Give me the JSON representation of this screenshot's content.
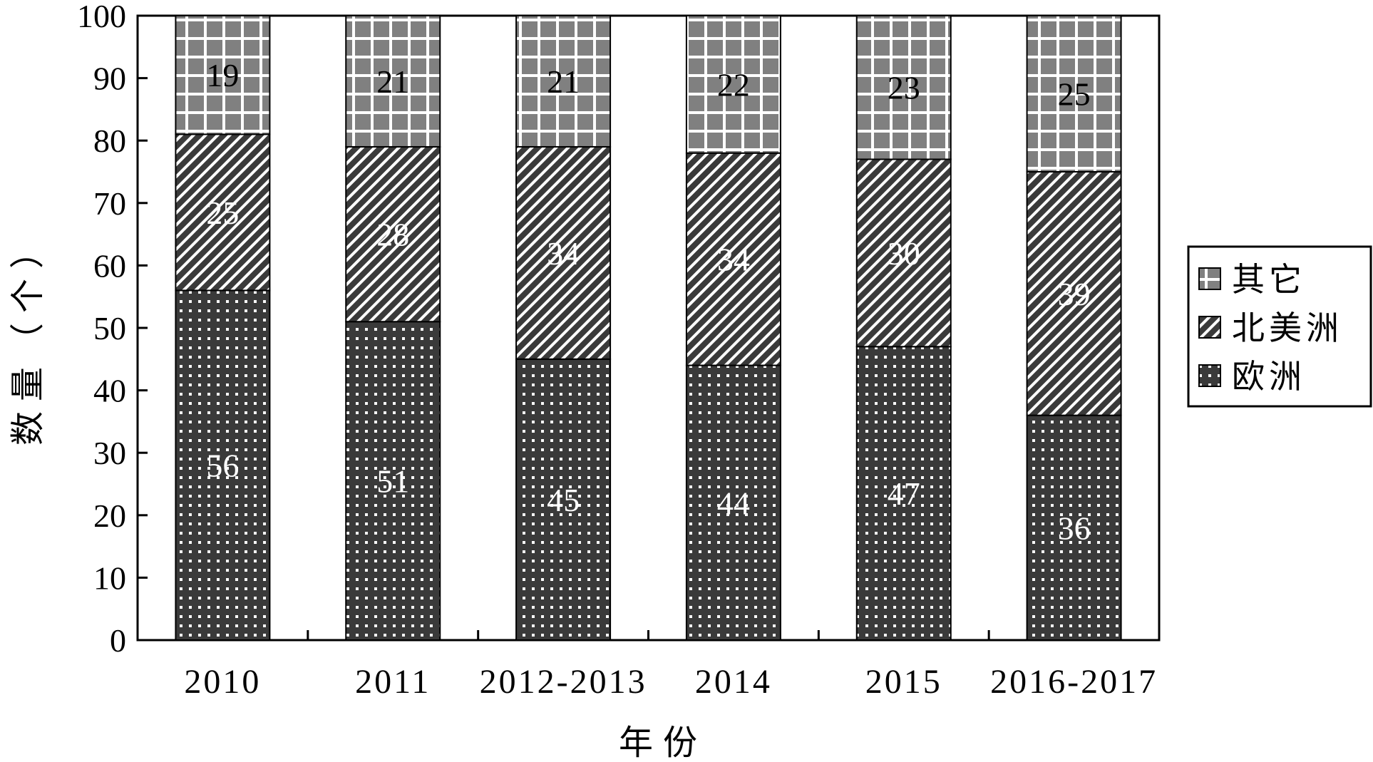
{
  "chart_data": {
    "type": "bar",
    "stacked": true,
    "title": "",
    "xlabel": "年份",
    "ylabel": "数量（个）",
    "ylim": [
      0,
      100
    ],
    "yticks": [
      0,
      10,
      20,
      30,
      40,
      50,
      60,
      70,
      80,
      90,
      100
    ],
    "categories": [
      "2010",
      "2011",
      "2012-2013",
      "2014",
      "2015",
      "2016-2017"
    ],
    "series": [
      {
        "name": "欧洲",
        "values": [
          56,
          51,
          45,
          44,
          47,
          36
        ],
        "pattern": "dots",
        "color": "#3a3a3a",
        "label_color": "#ffffff"
      },
      {
        "name": "北美洲",
        "values": [
          25,
          28,
          34,
          34,
          30,
          39
        ],
        "pattern": "diagonal",
        "color": "#3a3a3a",
        "label_color": "#ffffff"
      },
      {
        "name": "其它",
        "values": [
          19,
          21,
          21,
          22,
          23,
          25
        ],
        "pattern": "grid",
        "color": "#808080",
        "label_color": "#000000"
      }
    ],
    "legend": {
      "position": "right",
      "order": [
        "其它",
        "北美洲",
        "欧洲"
      ]
    },
    "grid": false
  }
}
